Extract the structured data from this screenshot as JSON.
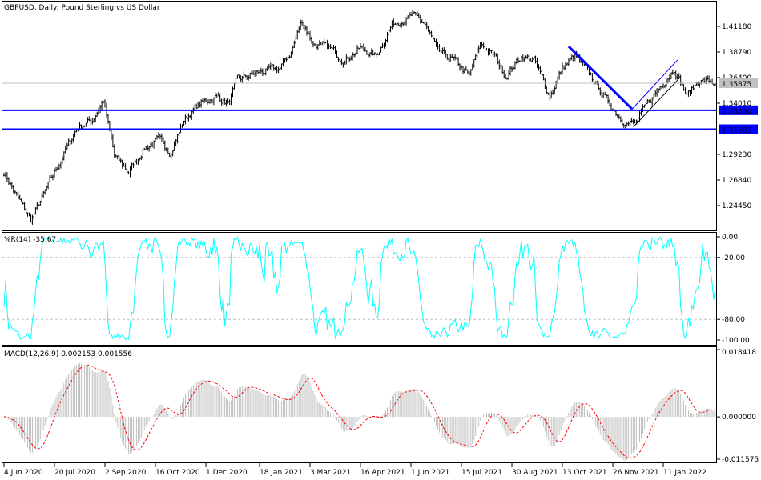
{
  "chart_data": {
    "type": "ohlc-bar",
    "title": "GBPUSD, Daily:  Pound Sterling vs US Dollar",
    "symbol": "GBPUSD",
    "timeframe": "Daily",
    "price_axis": {
      "ylim": [
        1.2275,
        1.4275
      ],
      "ticks": [
        "1.41180",
        "1.38790",
        "1.36400",
        "1.34010",
        "1.31581",
        "1.33350",
        "1.29230",
        "1.26840",
        "1.24450"
      ],
      "tick_values": [
        1.4118,
        1.3879,
        1.364,
        1.3401,
        1.2923,
        1.2684,
        1.2445
      ]
    },
    "current_price": {
      "label": "1.35875",
      "value": 1.35875,
      "color": "#c0c0c0"
    },
    "horizontal_lines": [
      {
        "label": "1.33350",
        "value": 1.3335,
        "color": "#0000ff"
      },
      {
        "label": "1.31581",
        "value": 1.31581,
        "color": "#0000ff"
      }
    ],
    "trendlines": [
      {
        "from": {
          "date": "2021-10-19",
          "price": 1.3931
        },
        "to": {
          "date": "2021-12-14",
          "price": 1.3349
        },
        "color": "#0000ff",
        "style": "thick"
      },
      {
        "from": {
          "date": "2021-12-14",
          "price": 1.3342
        },
        "to": {
          "date": "2022-01-24",
          "price": 1.3804
        },
        "color": "#0000ff",
        "style": "thin"
      },
      {
        "from": {
          "date": "2021-12-15",
          "price": 1.3178
        },
        "to": {
          "date": "2022-01-26",
          "price": 1.3647
        },
        "color": "#000000",
        "style": "thin"
      }
    ],
    "x_ticks": [
      "4 Jun 2020",
      "20 Jul 2020",
      "2 Sep 2020",
      "16 Oct 2020",
      "1 Dec 2020",
      "18 Jan 2021",
      "3 Mar 2021",
      "16 Apr 2021",
      "1 Jun 2021",
      "15 Jul 2021",
      "30 Aug 2021",
      "13 Oct 2021",
      "26 Nov 2021",
      "11 Jan 2022"
    ],
    "x_tick_dates": [
      "2020-06-04",
      "2020-07-20",
      "2020-09-02",
      "2020-10-16",
      "2020-12-01",
      "2021-01-18",
      "2021-03-03",
      "2021-04-16",
      "2021-06-01",
      "2021-07-15",
      "2021-08-30",
      "2021-10-13",
      "2021-11-26",
      "2022-01-11"
    ],
    "close_keypoints": [
      [
        "2020-06-04",
        1.2758
      ],
      [
        "2020-06-16",
        1.2534
      ],
      [
        "2020-06-29",
        1.231
      ],
      [
        "2020-07-10",
        1.2572
      ],
      [
        "2020-07-24",
        1.287
      ],
      [
        "2020-08-07",
        1.3169
      ],
      [
        "2020-08-21",
        1.3244
      ],
      [
        "2020-09-01",
        1.3431
      ],
      [
        "2020-09-10",
        1.2908
      ],
      [
        "2020-09-23",
        1.2758
      ],
      [
        "2020-10-07",
        1.2982
      ],
      [
        "2020-10-20",
        1.3057
      ],
      [
        "2020-10-30",
        1.2945
      ],
      [
        "2020-11-11",
        1.3244
      ],
      [
        "2020-11-25",
        1.3393
      ],
      [
        "2020-12-10",
        1.3468
      ],
      [
        "2020-12-21",
        1.3393
      ],
      [
        "2020-12-29",
        1.3618
      ],
      [
        "2021-01-18",
        1.3692
      ],
      [
        "2021-02-04",
        1.373
      ],
      [
        "2021-02-15",
        1.3879
      ],
      [
        "2021-02-24",
        1.4178
      ],
      [
        "2021-03-05",
        1.3954
      ],
      [
        "2021-03-19",
        1.3917
      ],
      [
        "2021-04-02",
        1.3804
      ],
      [
        "2021-04-16",
        1.3917
      ],
      [
        "2021-04-30",
        1.3842
      ],
      [
        "2021-05-14",
        1.414
      ],
      [
        "2021-06-02",
        1.4215
      ],
      [
        "2021-06-14",
        1.414
      ],
      [
        "2021-06-24",
        1.3879
      ],
      [
        "2021-07-08",
        1.3804
      ],
      [
        "2021-07-22",
        1.3655
      ],
      [
        "2021-08-02",
        1.3954
      ],
      [
        "2021-08-13",
        1.3842
      ],
      [
        "2021-08-24",
        1.3655
      ],
      [
        "2021-09-07",
        1.3842
      ],
      [
        "2021-09-17",
        1.3804
      ],
      [
        "2021-10-01",
        1.3468
      ],
      [
        "2021-10-13",
        1.373
      ],
      [
        "2021-10-25",
        1.3842
      ],
      [
        "2021-11-08",
        1.3655
      ],
      [
        "2021-11-22",
        1.3431
      ],
      [
        "2021-12-06",
        1.3244
      ],
      [
        "2021-12-16",
        1.3207
      ],
      [
        "2021-12-28",
        1.3393
      ],
      [
        "2022-01-10",
        1.358
      ],
      [
        "2022-01-20",
        1.373
      ],
      [
        "2022-02-01",
        1.3468
      ],
      [
        "2022-02-11",
        1.3618
      ],
      [
        "2022-02-25",
        1.35875
      ]
    ],
    "indicators": {
      "wpr": {
        "label": "%R(14) -35.67",
        "period": 14,
        "value": -35.67,
        "ylim": [
          -100,
          0
        ],
        "ticks": [
          "0.00",
          "-20.00",
          "-80.00",
          "-100.00"
        ],
        "levels": [
          -20,
          -80
        ],
        "color": "#00ffff"
      },
      "macd": {
        "label": "MACD(12,26,9) 0.002153 0.001556",
        "params": [
          12,
          26,
          9
        ],
        "main": 0.002153,
        "signal": 0.001556,
        "ylim": [
          -0.011575,
          0.018418
        ],
        "ticks": [
          "0.018418",
          "0.000000",
          "-0.011575"
        ],
        "histogram_color": "#c0c0c0",
        "signal_color": "#ff0000"
      }
    }
  }
}
